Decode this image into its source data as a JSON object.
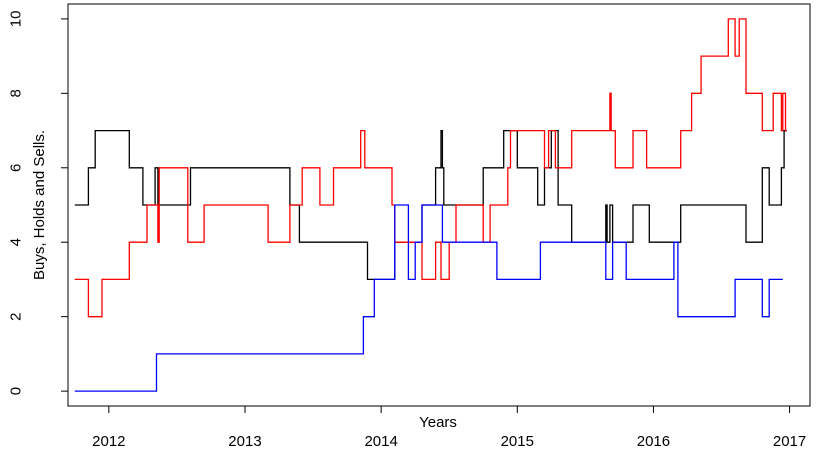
{
  "chart_data": {
    "type": "line",
    "xlabel": "Years",
    "ylabel": "Buys, Holds and Sells.",
    "xlim": [
      2011.7,
      2017.15
    ],
    "ylim": [
      -0.4,
      10.4
    ],
    "x_ticks": [
      2012,
      2013,
      2014,
      2015,
      2016,
      2017
    ],
    "y_ticks": [
      0,
      2,
      4,
      6,
      8,
      10
    ],
    "grid": false,
    "legend": "none",
    "step": true,
    "series": [
      {
        "color": "#000000",
        "x": [
          2011.75,
          2011.85,
          2011.9,
          2012.15,
          2012.25,
          2012.33,
          2012.34,
          2012.36,
          2012.6,
          2012.61,
          2013.33,
          2013.4,
          2013.9,
          2014.0,
          2014.1,
          2014.3,
          2014.4,
          2014.44,
          2014.45,
          2014.46,
          2014.47,
          2014.5,
          2014.75,
          2014.9,
          2015.0,
          2015.15,
          2015.2,
          2015.25,
          2015.3,
          2015.4,
          2015.65,
          2015.66,
          2015.68,
          2015.7,
          2015.85,
          2015.97,
          2016.2,
          2016.68,
          2016.8,
          2016.85,
          2016.94,
          2016.96,
          2016.98
        ],
        "values": [
          5,
          6,
          7,
          6,
          5,
          5,
          6,
          5,
          6,
          6,
          5,
          4,
          3,
          3,
          4,
          5,
          6,
          7,
          6,
          5,
          5,
          5,
          6,
          7,
          6,
          5,
          6,
          7,
          5,
          4,
          5,
          4,
          5,
          4,
          5,
          4,
          5,
          4,
          6,
          5,
          6,
          7,
          7
        ]
      },
      {
        "color": "#ff0000",
        "x": [
          2011.75,
          2011.85,
          2011.95,
          2012.15,
          2012.28,
          2012.36,
          2012.37,
          2012.4,
          2012.58,
          2012.7,
          2012.85,
          2013.17,
          2013.33,
          2013.42,
          2013.55,
          2013.65,
          2013.85,
          2013.88,
          2014.08,
          2014.1,
          2014.3,
          2014.4,
          2014.44,
          2014.5,
          2014.55,
          2014.75,
          2014.8,
          2014.93,
          2014.95,
          2015.2,
          2015.23,
          2015.28,
          2015.4,
          2015.68,
          2015.69,
          2015.7,
          2015.72,
          2015.85,
          2015.95,
          2016.2,
          2016.28,
          2016.35,
          2016.55,
          2016.6,
          2016.63,
          2016.68,
          2016.8,
          2016.88,
          2016.94,
          2016.95,
          2016.97,
          2016.98
        ],
        "values": [
          3,
          2,
          3,
          4,
          5,
          4,
          6,
          6,
          4,
          5,
          5,
          4,
          5,
          6,
          5,
          6,
          7,
          6,
          5,
          4,
          3,
          4,
          3,
          4,
          5,
          4,
          5,
          6,
          7,
          6,
          7,
          6,
          7,
          8,
          7,
          7,
          6,
          7,
          6,
          7,
          8,
          9,
          10,
          9,
          10,
          8,
          7,
          8,
          7,
          8,
          7,
          7
        ]
      },
      {
        "color": "#0000ff",
        "x": [
          2011.75,
          2012.35,
          2013.87,
          2013.95,
          2014.1,
          2014.2,
          2014.25,
          2014.3,
          2014.45,
          2014.85,
          2015.17,
          2015.65,
          2015.7,
          2015.8,
          2015.85,
          2016.15,
          2016.18,
          2016.6,
          2016.8,
          2016.85,
          2016.95
        ],
        "values": [
          0,
          1,
          2,
          3,
          5,
          3,
          4,
          5,
          4,
          3,
          4,
          3,
          4,
          3,
          3,
          4,
          2,
          3,
          2,
          3,
          3
        ]
      }
    ]
  }
}
